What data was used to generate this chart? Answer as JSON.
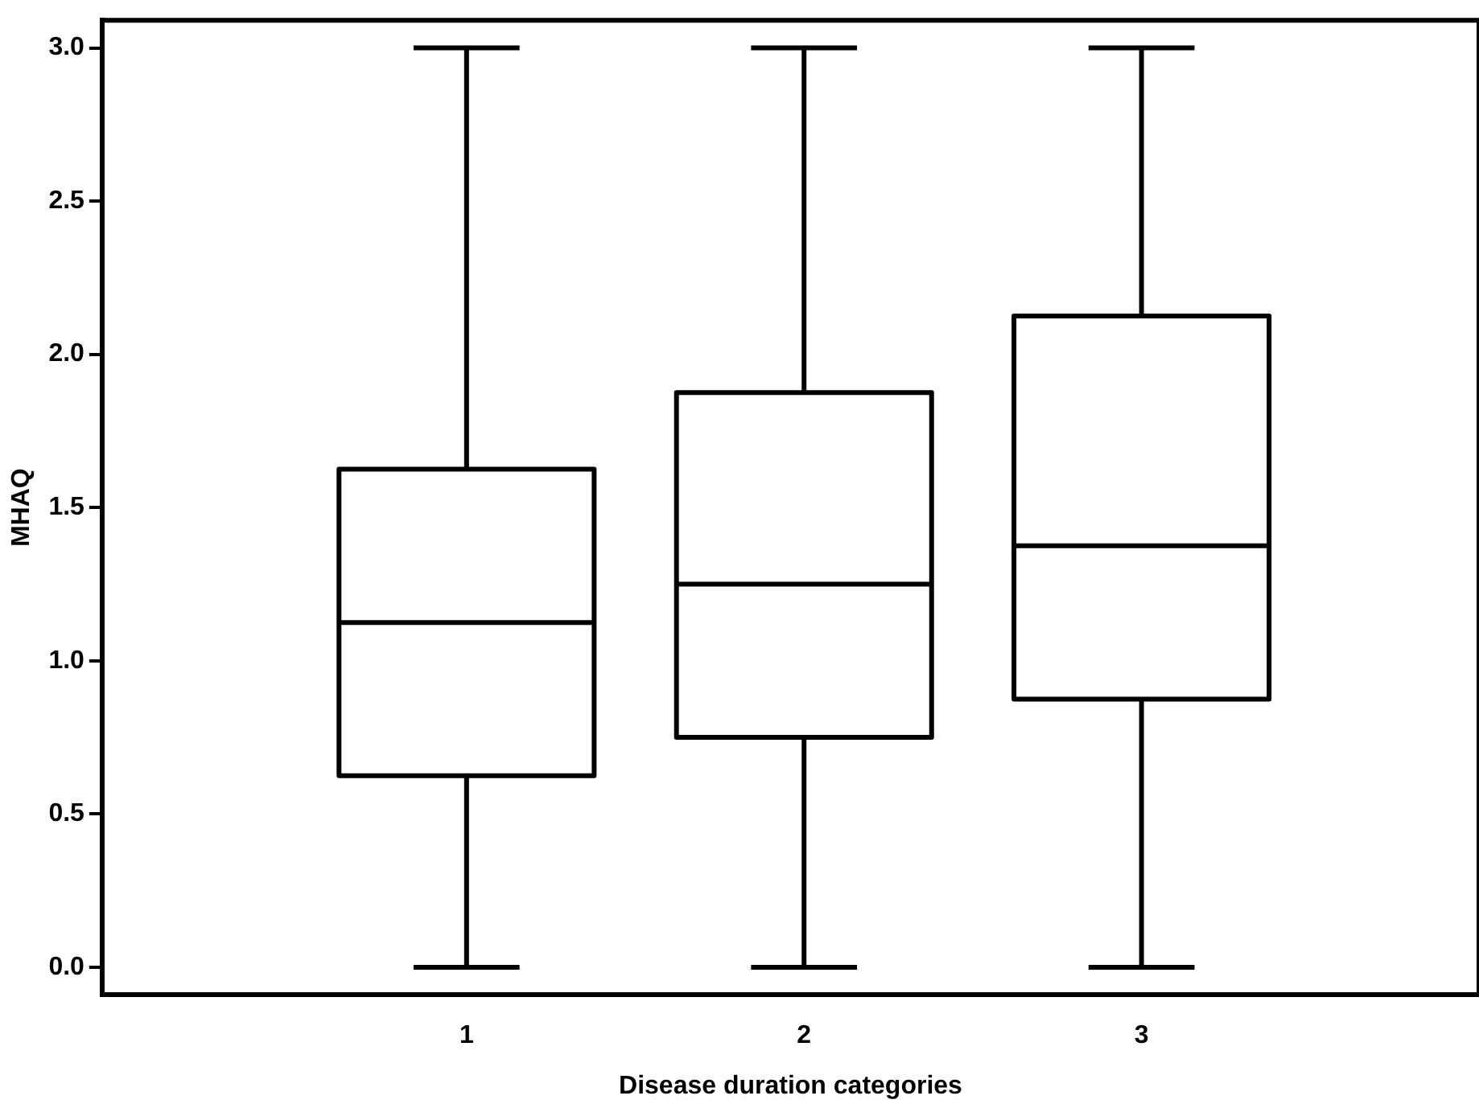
{
  "chart_data": {
    "type": "box",
    "xlabel": "Disease duration categories",
    "ylabel": "MHAQ",
    "categories": [
      "1",
      "2",
      "3"
    ],
    "boxes": [
      {
        "low": 0,
        "q1": 0.625,
        "median": 1.125,
        "q3": 1.625,
        "high": 3
      },
      {
        "low": 0,
        "q1": 0.75,
        "median": 1.25,
        "q3": 1.875,
        "high": 3
      },
      {
        "low": 0,
        "q1": 0.875,
        "median": 1.375,
        "q3": 2.125,
        "high": 3
      }
    ],
    "color": "#000000",
    "ylim": [
      -0.09,
      3.09
    ],
    "yticks": [
      {
        "value": 0,
        "label": "0.0"
      },
      {
        "value": 0.5,
        "label": "0.5"
      },
      {
        "value": 1,
        "label": "1.0"
      },
      {
        "value": 1.5,
        "label": "1.5"
      },
      {
        "value": 2,
        "label": "2.0"
      },
      {
        "value": 2.5,
        "label": "2.5"
      },
      {
        "value": 3,
        "label": "3.0"
      }
    ],
    "grid": false
  }
}
